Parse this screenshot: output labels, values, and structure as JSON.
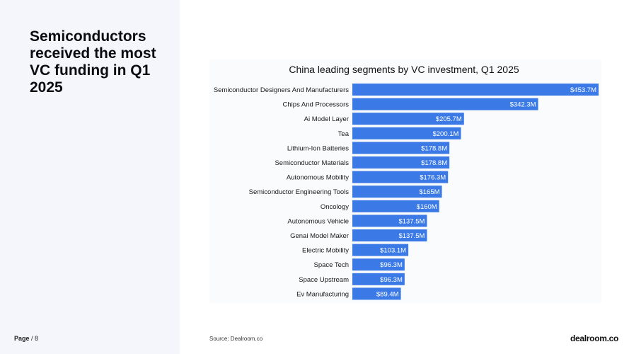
{
  "headline": "Semiconductors received the most VC funding in Q1 2025",
  "footer": {
    "page_label": "Page",
    "page_suffix": "/ 8",
    "source": "Source:  Dealroom.co",
    "logo_text": "dealroom.co"
  },
  "colors": {
    "bar": "#3b7ae6",
    "bar_label": "#ffffff"
  },
  "chart_data": {
    "type": "bar",
    "orientation": "horizontal",
    "title": "China leading segments by VC investment, Q1 2025",
    "xlabel": "",
    "ylabel": "",
    "grid": false,
    "xlim": [
      0,
      453.7
    ],
    "categories": [
      "Semiconductor Designers And Manufacturers",
      "Chips And Processors",
      "Ai Model Layer",
      "Tea",
      "Lithium-Ion Batteries",
      "Semiconductor Materials",
      "Autonomous Mobility",
      "Semiconductor Engineering Tools",
      "Oncology",
      "Autonomous Vehicle",
      "Genai Model Maker",
      "Electric Mobility",
      "Space Tech",
      "Space Upstream",
      "Ev Manufacturing"
    ],
    "values": [
      453.7,
      342.3,
      205.7,
      200.1,
      178.8,
      178.8,
      176.3,
      165,
      160,
      137.5,
      137.5,
      103.1,
      96.3,
      96.3,
      89.4
    ],
    "data_labels": [
      "$453.7M",
      "$342.3M",
      "$205.7M",
      "$200.1M",
      "$178.8M",
      "$178.8M",
      "$176.3M",
      "$165M",
      "$160M",
      "$137.5M",
      "$137.5M",
      "$103.1M",
      "$96.3M",
      "$96.3M",
      "$89.4M"
    ]
  }
}
